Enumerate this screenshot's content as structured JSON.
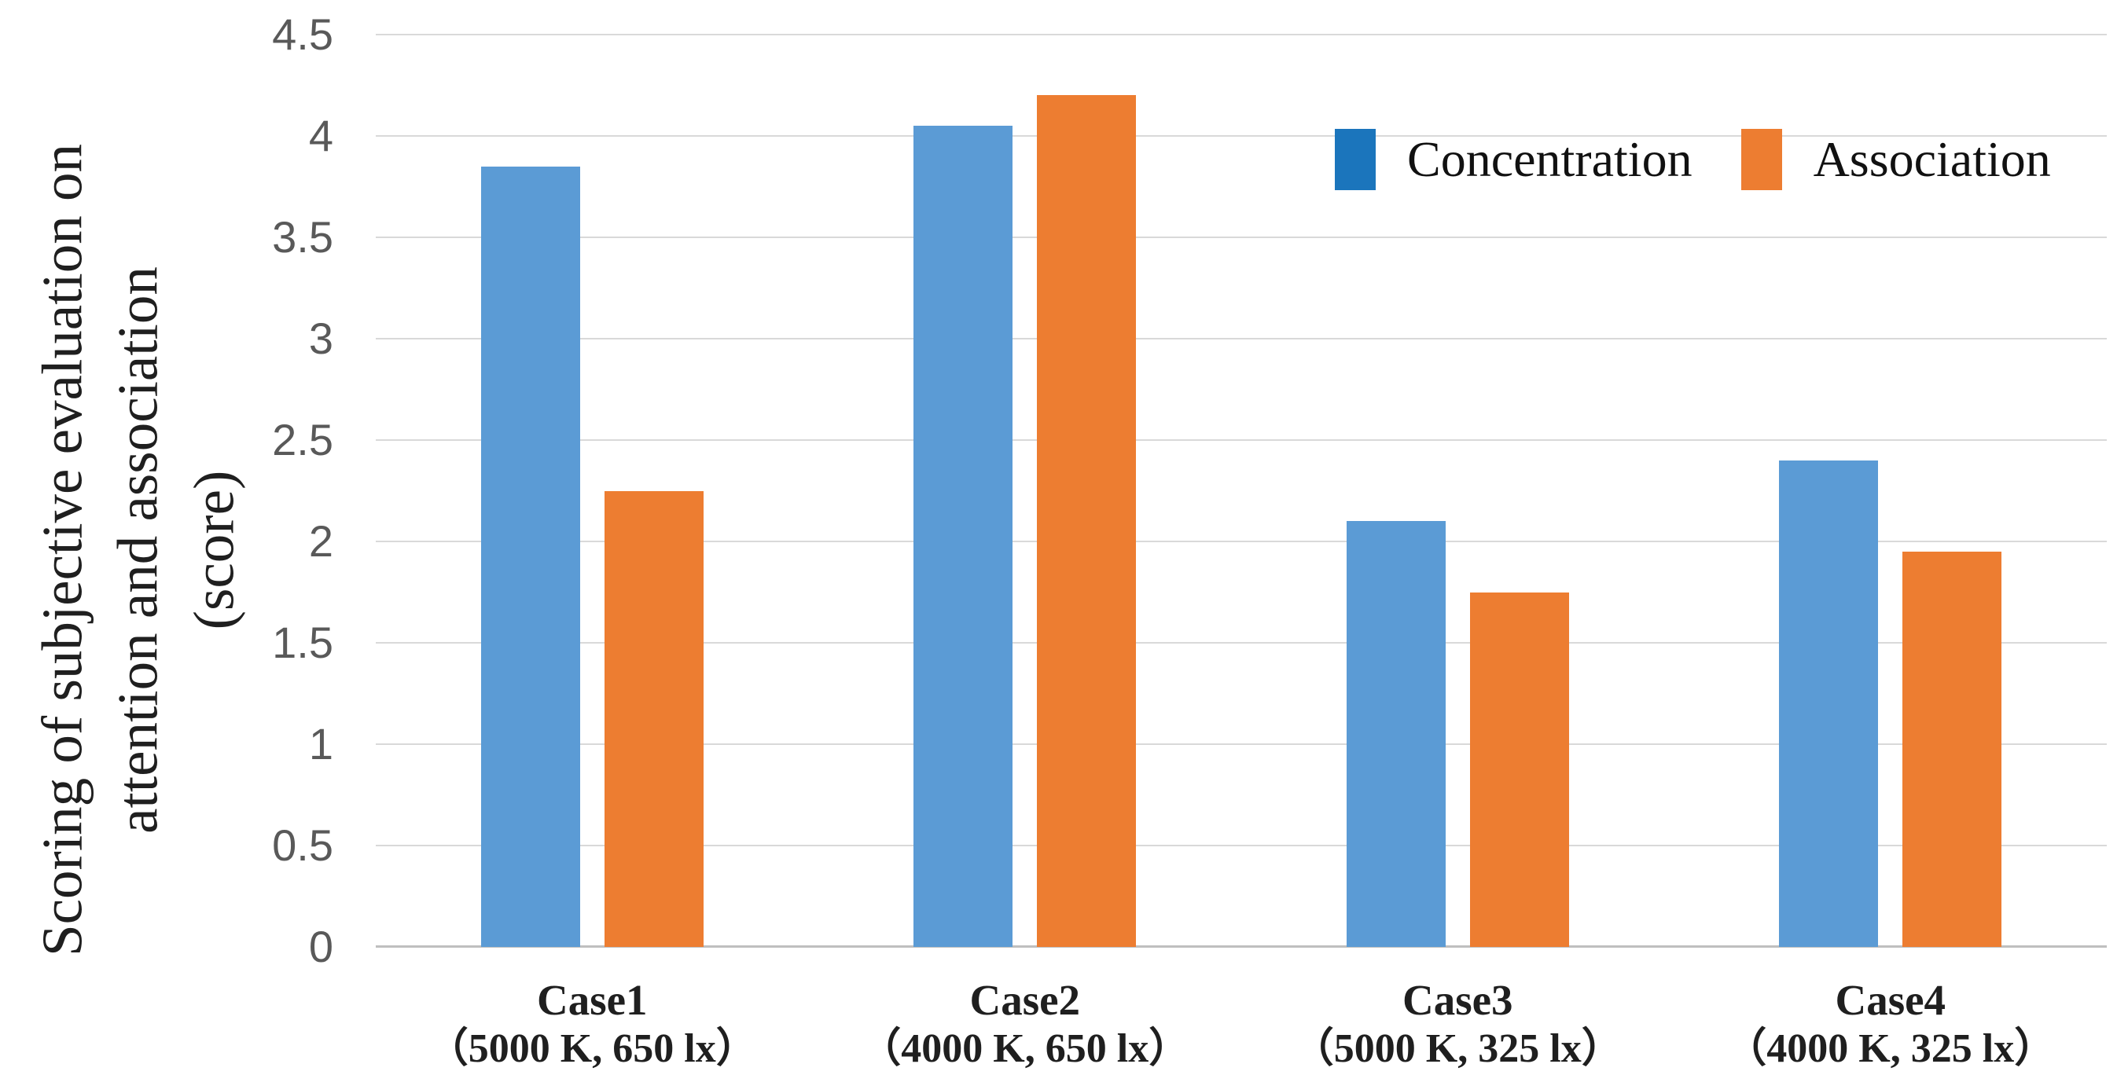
{
  "chart_data": {
    "type": "bar",
    "title": "",
    "ylabel_lines": [
      "Scoring of subjective evaluation on",
      "attention and association",
      "(score)"
    ],
    "categories": [
      "Case1",
      "Case2",
      "Case3",
      "Case4"
    ],
    "category_sublabels": [
      "（5000 K, 650 lx）",
      "（4000 K, 650 lx）",
      "（5000 K, 325 lx）",
      "（4000 K, 325 lx）"
    ],
    "series": [
      {
        "name": "Concentration",
        "values": [
          3.85,
          4.05,
          2.1,
          2.4
        ],
        "bar_color": "#5B9BD5",
        "legend_color": "#1B75BC"
      },
      {
        "name": "Association",
        "values": [
          2.25,
          4.2,
          1.75,
          1.95
        ],
        "bar_color": "#ED7D31",
        "legend_color": "#ED7D31"
      }
    ],
    "yticks": [
      0,
      0.5,
      1,
      1.5,
      2,
      2.5,
      3,
      3.5,
      4,
      4.5
    ],
    "ylim": [
      0,
      4.5
    ],
    "xlabel": "",
    "grid": true,
    "legend_position": "top-right-inside",
    "colors": {
      "gridline": "#D9D9D9",
      "axis_line": "#BFBFBF",
      "tick_text": "#595959",
      "label_text": "#1F1F1F",
      "background": "#FFFFFF"
    }
  }
}
